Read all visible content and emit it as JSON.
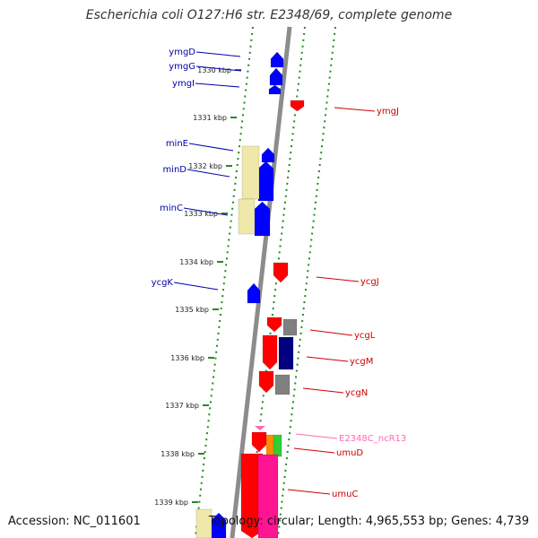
{
  "title": "Escherichia coli O127:H6 str. E2348/69, complete genome",
  "footer": {
    "accession": "Accession: NC_011601",
    "summary": "Topology: circular; Length: 4,965,553 bp; Genes: 4,739"
  },
  "colors": {
    "axis": "#8c8c8c",
    "track_dots": "#228b22",
    "plus_strand_label": "#0000aa",
    "minus_strand_label": "#cc0000",
    "ncrna_label": "#ff69b4",
    "gene_blue": "#0000ff",
    "gene_red": "#ff0000",
    "cds_khaki": "#eee8aa",
    "cds_gray": "#808080",
    "cds_navy": "#000080",
    "cds_orange": "#ff8c00",
    "cds_green": "#32cd32",
    "cds_pink": "#ff1493",
    "ncrna_pink": "#ff69b4"
  },
  "ticks": [
    {
      "label": "1330 kbp"
    },
    {
      "label": "1331 kbp"
    },
    {
      "label": "1332 kbp"
    },
    {
      "label": "1333 kbp"
    },
    {
      "label": "1334 kbp"
    },
    {
      "label": "1335 kbp"
    },
    {
      "label": "1336 kbp"
    },
    {
      "label": "1337 kbp"
    },
    {
      "label": "1338 kbp"
    },
    {
      "label": "1339 kbp"
    }
  ],
  "left_genes": [
    {
      "name": "ymgD"
    },
    {
      "name": "ymgG"
    },
    {
      "name": "ymgI"
    },
    {
      "name": "minE"
    },
    {
      "name": "minD"
    },
    {
      "name": "minC"
    },
    {
      "name": "ycgK"
    }
  ],
  "right_genes": [
    {
      "name": "ymgJ",
      "kind": "gene"
    },
    {
      "name": "ycgJ",
      "kind": "gene"
    },
    {
      "name": "ycgL",
      "kind": "gene"
    },
    {
      "name": "ycgM",
      "kind": "gene"
    },
    {
      "name": "ycgN",
      "kind": "gene"
    },
    {
      "name": "E2348C_ncR13",
      "kind": "ncrna"
    },
    {
      "name": "umuD",
      "kind": "gene"
    },
    {
      "name": "umuC",
      "kind": "gene"
    }
  ]
}
